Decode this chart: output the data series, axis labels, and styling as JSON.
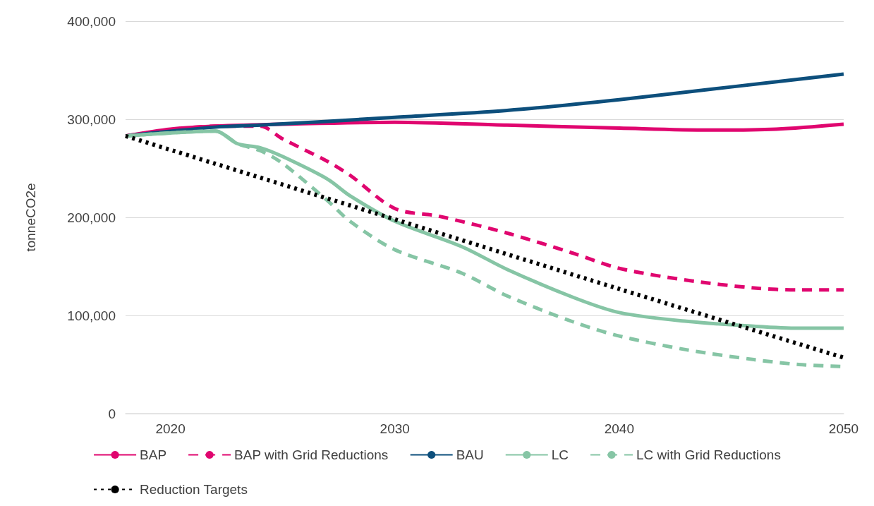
{
  "chart_data": {
    "type": "line",
    "ylabel": "tonneCO2e",
    "xlim": [
      2018,
      2050
    ],
    "xticks": [
      2020,
      2030,
      2040,
      2050
    ],
    "ylim": [
      0,
      400000
    ],
    "yticks": [
      {
        "value": 0,
        "label": "0"
      },
      {
        "value": 100000,
        "label": "100,000"
      },
      {
        "value": 200000,
        "label": "200,000"
      },
      {
        "value": 300000,
        "label": "300,000"
      },
      {
        "value": 400000,
        "label": "400,000"
      }
    ],
    "grid": "y",
    "legend": "bottom",
    "series": [
      {
        "name": "BAP",
        "color": "#e0066f",
        "line_style": "solid",
        "x": [
          2018,
          2020,
          2022,
          2025,
          2030,
          2035,
          2040,
          2044,
          2047,
          2050
        ],
        "values": [
          283000,
          290000,
          293000,
          295000,
          297000,
          294000,
          291000,
          289000,
          290000,
          295000
        ]
      },
      {
        "name": "BAP with Grid Reductions",
        "color": "#e0066f",
        "line_style": "dashed",
        "x": [
          2018,
          2022,
          2024,
          2025,
          2027,
          2028,
          2030,
          2032,
          2035,
          2038,
          2040,
          2043,
          2046,
          2048,
          2050
        ],
        "values": [
          283000,
          293000,
          293000,
          280000,
          257000,
          243000,
          209000,
          201000,
          184000,
          163000,
          148000,
          136000,
          128000,
          126000,
          126000
        ]
      },
      {
        "name": "BAU",
        "color": "#0d4f7c",
        "line_style": "solid",
        "x": [
          2018,
          2022,
          2024,
          2030,
          2035,
          2040,
          2045,
          2050
        ],
        "values": [
          283000,
          292000,
          294000,
          302000,
          309000,
          320000,
          333000,
          346000
        ]
      },
      {
        "name": "LC",
        "color": "#86c5a5",
        "line_style": "solid",
        "x": [
          2018,
          2020,
          2022,
          2023,
          2024,
          2025,
          2027,
          2028,
          2030,
          2033,
          2035,
          2038,
          2040,
          2043,
          2046,
          2048,
          2050
        ],
        "values": [
          283000,
          286000,
          288000,
          275000,
          271000,
          262000,
          239000,
          222000,
          196000,
          170000,
          147000,
          118000,
          103000,
          94000,
          89000,
          87000,
          87000
        ]
      },
      {
        "name": "LC with Grid Reductions",
        "color": "#86c5a5",
        "line_style": "dashed",
        "x": [
          2018,
          2022,
          2023,
          2024,
          2025,
          2027,
          2028,
          2030,
          2033,
          2035,
          2038,
          2040,
          2043,
          2046,
          2048,
          2050
        ],
        "values": [
          283000,
          288000,
          275000,
          268000,
          255000,
          217000,
          196000,
          167000,
          143000,
          120000,
          93000,
          79000,
          65000,
          55000,
          50000,
          48000
        ]
      },
      {
        "name": "Reduction Targets",
        "color": "#000000",
        "line_style": "dotted",
        "x": [
          2018,
          2030,
          2040,
          2050
        ],
        "values": [
          283000,
          198000,
          127000,
          57000
        ]
      }
    ]
  }
}
